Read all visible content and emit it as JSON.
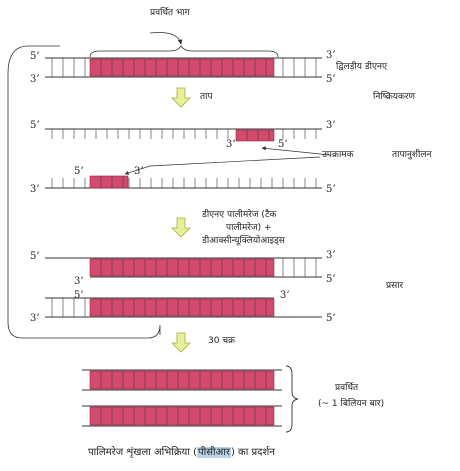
{
  "labels": {
    "amplified_region": "प्रवर्धित भाग",
    "double_strand_dna": "द्विलड़ीय डीएनए",
    "heat": "ताप",
    "denaturation": "निष्क्रियकरण",
    "primer": "उपक्रामक",
    "annealing": "तापानुशीलन",
    "polymerase_line1": "डीएनए पालीमरेज (टैक",
    "polymerase_line2": "पालीमरेज)  +",
    "polymerase_line3": "डीआक्सीन्यूक्लियोआइड्स",
    "extension": "प्रसार",
    "cycles": "30 चक्र",
    "amplified": "प्रवर्धित",
    "billion": "(~ 1 बिलियन बार)",
    "caption_pre": "पालिमरेज शृंखला अभिक्रिया (",
    "caption_hl": "पीसीआर",
    "caption_post": ") का प्रदर्शन",
    "five_prime": "5’",
    "three_prime": "3’"
  },
  "colors": {
    "segment_fill": "#d24a6e",
    "segment_stroke": "#9a2540",
    "arrow_fill": "#e7ef9a",
    "arrow_stroke": "#a8ad3a",
    "line": "#333333",
    "caption_highlight": "#b8d4e6"
  },
  "icons": {
    "step_arrow": "down-arrow-icon",
    "brace": "right-curly-brace-icon"
  }
}
